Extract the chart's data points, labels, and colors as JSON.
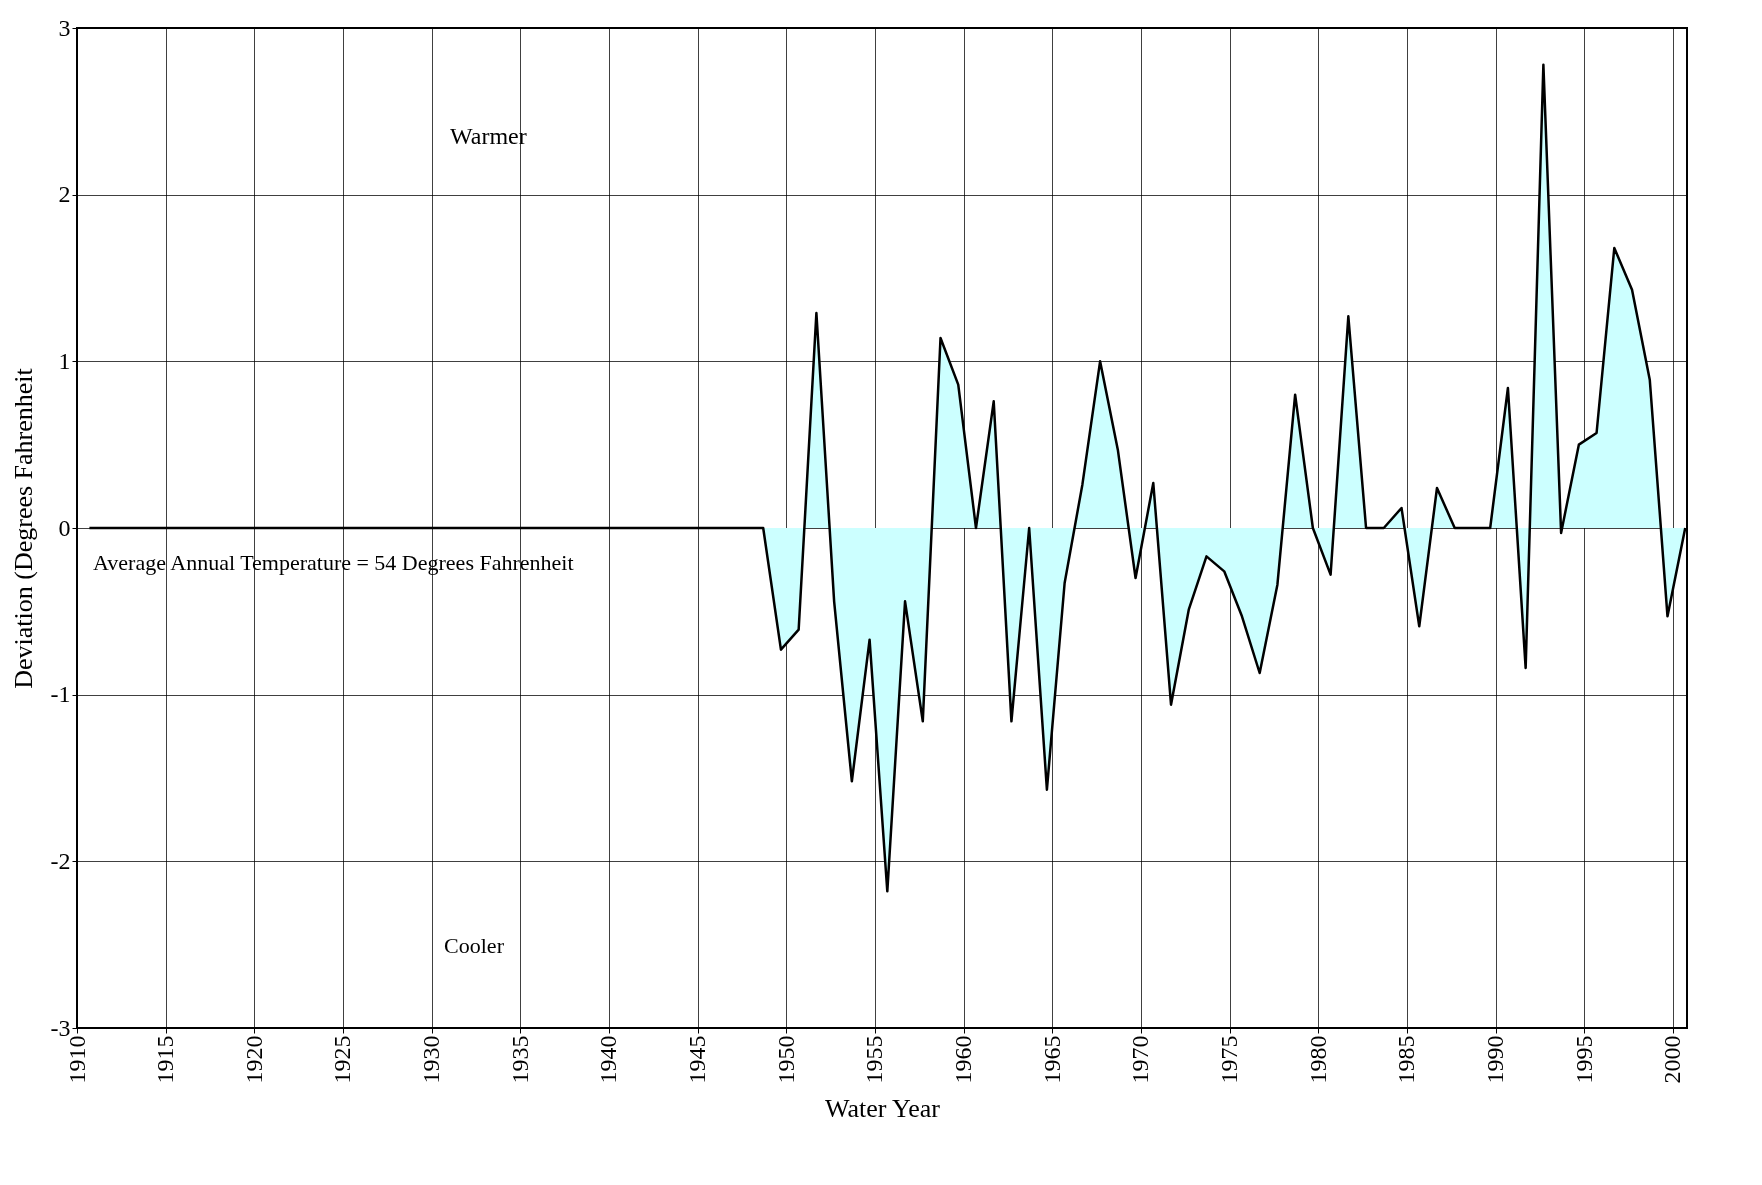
{
  "chart_data": {
    "type": "area",
    "xlabel": "Water Year",
    "ylabel": "Deviation (Degrees Fahrenheit",
    "xlim": [
      1910,
      2000.8
    ],
    "xticks": [
      1910,
      1915,
      1920,
      1925,
      1930,
      1935,
      1940,
      1945,
      1950,
      1955,
      1960,
      1965,
      1970,
      1975,
      1980,
      1985,
      1990,
      1995,
      2000
    ],
    "ylim": [
      -3,
      3
    ],
    "yticks": [
      -3,
      -2,
      -1,
      0,
      1,
      2,
      3
    ],
    "grid": true,
    "annotations": [
      "Warmer",
      "Cooler",
      "Average Annual Temperature = 54 Degrees Fahrenheit"
    ],
    "x": [
      1910.7,
      1911.7,
      1912.7,
      1913.7,
      1914.7,
      1915.7,
      1916.7,
      1917.7,
      1918.7,
      1919.7,
      1920.7,
      1921.7,
      1922.7,
      1923.7,
      1924.7,
      1925.7,
      1926.7,
      1927.7,
      1928.7,
      1929.7,
      1930.7,
      1931.7,
      1932.7,
      1933.7,
      1934.7,
      1935.7,
      1936.7,
      1937.7,
      1938.7,
      1939.7,
      1940.7,
      1941.7,
      1942.7,
      1943.7,
      1944.7,
      1945.7,
      1946.7,
      1947.7,
      1948.7,
      1949.7,
      1950.7,
      1951.7,
      1952.7,
      1953.7,
      1954.7,
      1955.7,
      1956.7,
      1957.7,
      1958.7,
      1959.7,
      1960.7,
      1961.7,
      1962.7,
      1963.7,
      1964.7,
      1965.7,
      1966.7,
      1967.7,
      1968.7,
      1969.7,
      1970.7,
      1971.7,
      1972.7,
      1973.7,
      1974.7,
      1975.7,
      1976.7,
      1977.7,
      1978.7,
      1979.7,
      1980.7,
      1981.7,
      1982.7,
      1983.7,
      1984.7,
      1985.7,
      1986.7,
      1987.7,
      1988.7,
      1989.7,
      1990.7,
      1991.7,
      1992.7,
      1993.7,
      1994.7,
      1995.7,
      1996.7,
      1997.7,
      1998.7,
      1999.7,
      2000.7
    ],
    "series": [
      {
        "color": "#ccffff",
        "values": [
          0,
          0,
          0,
          0,
          0,
          0,
          0,
          0,
          0,
          0,
          0,
          0,
          0,
          0,
          0,
          0,
          0,
          0,
          0,
          0,
          0,
          0,
          0,
          0,
          0,
          0,
          0,
          0,
          0,
          0,
          0,
          0,
          0,
          0,
          0,
          0,
          0,
          0,
          0,
          -0.73,
          -0.61,
          1.29,
          -0.44,
          -1.52,
          -0.67,
          -2.18,
          -0.44,
          -1.16,
          1.14,
          0.86,
          0,
          0.76,
          -1.16,
          0,
          -1.57,
          -0.33,
          0.26,
          1.0,
          0.47,
          -0.3,
          0.27,
          -1.06,
          -0.49,
          -0.17,
          -0.26,
          -0.53,
          -0.87,
          -0.34,
          0.8,
          0,
          -0.28,
          1.27,
          0,
          0,
          0.12,
          -0.59,
          0.24,
          0,
          0,
          0,
          0.84,
          -0.84,
          2.78,
          -0.03,
          0.5,
          0.57,
          1.68,
          1.43,
          0.89,
          -0.53,
          0
        ]
      }
    ]
  }
}
